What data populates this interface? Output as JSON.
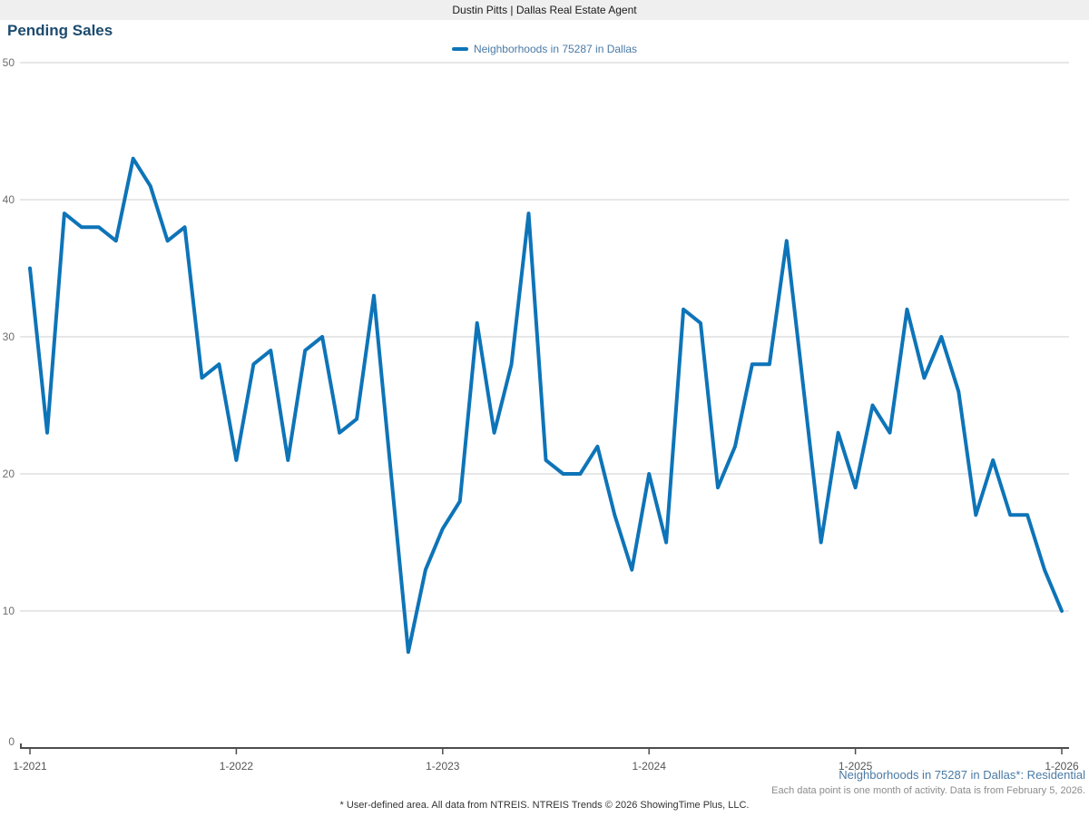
{
  "header": {
    "title": "Dustin Pitts | Dallas Real Estate Agent"
  },
  "page_title": "Pending Sales",
  "legend": {
    "label": "Neighborhoods in 75287 in Dallas"
  },
  "chart_data": {
    "type": "line",
    "title": "Pending Sales",
    "series_name": "Neighborhoods in 75287 in Dallas",
    "categories": [
      "1-2021",
      "2-2021",
      "3-2021",
      "4-2021",
      "5-2021",
      "6-2021",
      "7-2021",
      "8-2021",
      "9-2021",
      "10-2021",
      "11-2021",
      "12-2021",
      "1-2022",
      "2-2022",
      "3-2022",
      "4-2022",
      "5-2022",
      "6-2022",
      "7-2022",
      "8-2022",
      "9-2022",
      "10-2022",
      "11-2022",
      "12-2022",
      "1-2023",
      "2-2023",
      "3-2023",
      "4-2023",
      "5-2023",
      "6-2023",
      "7-2023",
      "8-2023",
      "9-2023",
      "10-2023",
      "11-2023",
      "12-2023",
      "1-2024",
      "2-2024",
      "3-2024",
      "4-2024",
      "5-2024",
      "6-2024",
      "7-2024",
      "8-2024",
      "9-2024",
      "10-2024",
      "11-2024",
      "12-2024",
      "1-2025",
      "2-2025",
      "3-2025",
      "4-2025",
      "5-2025",
      "6-2025",
      "7-2025",
      "8-2025",
      "9-2025",
      "10-2025",
      "11-2025",
      "12-2025",
      "1-2026"
    ],
    "values": [
      35,
      23,
      39,
      38,
      38,
      37,
      43,
      41,
      37,
      38,
      27,
      28,
      21,
      28,
      29,
      21,
      29,
      30,
      23,
      24,
      33,
      20,
      7,
      13,
      16,
      18,
      31,
      23,
      28,
      39,
      21,
      20,
      20,
      22,
      17,
      13,
      20,
      15,
      32,
      31,
      19,
      22,
      28,
      28,
      37,
      26,
      15,
      23,
      19,
      25,
      23,
      32,
      27,
      30,
      26,
      17,
      21,
      17,
      17,
      13,
      10
    ],
    "x_tick_labels": [
      "1-2021",
      "1-2022",
      "1-2023",
      "1-2024",
      "1-2025",
      "1-2026"
    ],
    "y_ticks": [
      0,
      10,
      20,
      30,
      40,
      50
    ],
    "ylim": [
      0,
      50
    ],
    "grid": "horizontal",
    "legend_position": "top-center",
    "line_color": "#0e74b8",
    "gridline_color": "#cfcfcf",
    "axis_color": "#4d4d4d",
    "y_label_color": "#6e6e6e",
    "x_label_color": "#555555"
  },
  "footer": {
    "right_line1": "Neighborhoods in 75287 in Dallas*: Residential",
    "right_line2": "Each data point is one month of activity. Data is from February 5, 2026.",
    "center": "* User-defined area. All data from NTREIS. NTREIS Trends © 2026 ShowingTime Plus, LLC."
  }
}
